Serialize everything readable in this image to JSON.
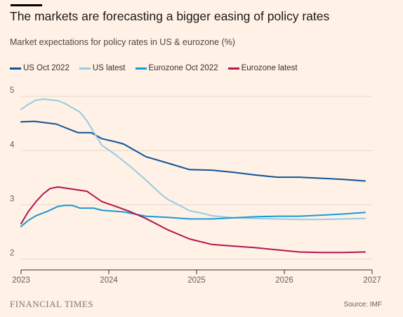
{
  "chart_data": {
    "type": "line",
    "title": "The markets are forecasting a bigger easing of policy rates",
    "subtitle": "Market expectations for policy rates in US & eurozone (%)",
    "xlabel": "",
    "ylabel": "",
    "xlim": [
      2023,
      2027
    ],
    "ylim": [
      1.8,
      5.3
    ],
    "x_ticks": [
      "2023",
      "2024",
      "2025",
      "2026",
      "2027"
    ],
    "y_ticks": [
      "5",
      "4",
      "3",
      "2"
    ],
    "grid": true,
    "legend_position": "top",
    "source": "Source: IMF",
    "series": [
      {
        "name": "US Oct 2022",
        "color": "#0f5499",
        "points": [
          [
            2023.0,
            4.53
          ],
          [
            2023.15,
            4.54
          ],
          [
            2023.4,
            4.49
          ],
          [
            2023.65,
            4.33
          ],
          [
            2023.8,
            4.33
          ],
          [
            2023.92,
            4.22
          ],
          [
            2024.08,
            4.16
          ],
          [
            2024.17,
            4.12
          ],
          [
            2024.42,
            3.89
          ],
          [
            2024.67,
            3.77
          ],
          [
            2024.92,
            3.65
          ],
          [
            2025.17,
            3.64
          ],
          [
            2025.42,
            3.6
          ],
          [
            2025.67,
            3.55
          ],
          [
            2025.92,
            3.51
          ],
          [
            2026.17,
            3.51
          ],
          [
            2026.42,
            3.49
          ],
          [
            2026.67,
            3.47
          ],
          [
            2026.92,
            3.44
          ]
        ]
      },
      {
        "name": "US latest",
        "color": "#96cce4",
        "points": [
          [
            2023.0,
            4.76
          ],
          [
            2023.08,
            4.85
          ],
          [
            2023.17,
            4.93
          ],
          [
            2023.25,
            4.95
          ],
          [
            2023.42,
            4.92
          ],
          [
            2023.5,
            4.87
          ],
          [
            2023.67,
            4.71
          ],
          [
            2023.75,
            4.55
          ],
          [
            2023.83,
            4.34
          ],
          [
            2023.92,
            4.1
          ],
          [
            2024.08,
            3.92
          ],
          [
            2024.25,
            3.7
          ],
          [
            2024.42,
            3.46
          ],
          [
            2024.58,
            3.22
          ],
          [
            2024.67,
            3.1
          ],
          [
            2024.83,
            2.97
          ],
          [
            2024.92,
            2.89
          ],
          [
            2025.08,
            2.84
          ],
          [
            2025.17,
            2.8
          ],
          [
            2025.42,
            2.76
          ],
          [
            2025.67,
            2.75
          ],
          [
            2025.92,
            2.74
          ],
          [
            2026.17,
            2.73
          ],
          [
            2026.42,
            2.73
          ],
          [
            2026.67,
            2.74
          ],
          [
            2026.92,
            2.75
          ]
        ]
      },
      {
        "name": "Eurozone Oct 2022",
        "color": "#1a9ad6",
        "points": [
          [
            2023.0,
            2.6
          ],
          [
            2023.08,
            2.71
          ],
          [
            2023.17,
            2.8
          ],
          [
            2023.3,
            2.88
          ],
          [
            2023.42,
            2.97
          ],
          [
            2023.5,
            2.99
          ],
          [
            2023.58,
            2.99
          ],
          [
            2023.67,
            2.94
          ],
          [
            2023.83,
            2.94
          ],
          [
            2023.92,
            2.9
          ],
          [
            2024.17,
            2.87
          ],
          [
            2024.42,
            2.79
          ],
          [
            2024.67,
            2.77
          ],
          [
            2024.92,
            2.74
          ],
          [
            2025.17,
            2.74
          ],
          [
            2025.42,
            2.76
          ],
          [
            2025.67,
            2.78
          ],
          [
            2025.92,
            2.79
          ],
          [
            2026.17,
            2.79
          ],
          [
            2026.42,
            2.81
          ],
          [
            2026.67,
            2.83
          ],
          [
            2026.92,
            2.86
          ]
        ]
      },
      {
        "name": "Eurozone latest",
        "color": "#b31553",
        "points": [
          [
            2023.0,
            2.65
          ],
          [
            2023.08,
            2.87
          ],
          [
            2023.17,
            3.06
          ],
          [
            2023.25,
            3.2
          ],
          [
            2023.33,
            3.3
          ],
          [
            2023.42,
            3.33
          ],
          [
            2023.5,
            3.31
          ],
          [
            2023.67,
            3.27
          ],
          [
            2023.75,
            3.25
          ],
          [
            2023.92,
            3.06
          ],
          [
            2024.08,
            2.97
          ],
          [
            2024.25,
            2.87
          ],
          [
            2024.42,
            2.75
          ],
          [
            2024.67,
            2.54
          ],
          [
            2024.92,
            2.37
          ],
          [
            2025.17,
            2.27
          ],
          [
            2025.42,
            2.24
          ],
          [
            2025.67,
            2.21
          ],
          [
            2025.92,
            2.17
          ],
          [
            2026.17,
            2.13
          ],
          [
            2026.42,
            2.12
          ],
          [
            2026.67,
            2.12
          ],
          [
            2026.92,
            2.13
          ]
        ]
      }
    ]
  },
  "footer": {
    "brand": "FINANCIAL TIMES",
    "source": "Source: IMF"
  }
}
